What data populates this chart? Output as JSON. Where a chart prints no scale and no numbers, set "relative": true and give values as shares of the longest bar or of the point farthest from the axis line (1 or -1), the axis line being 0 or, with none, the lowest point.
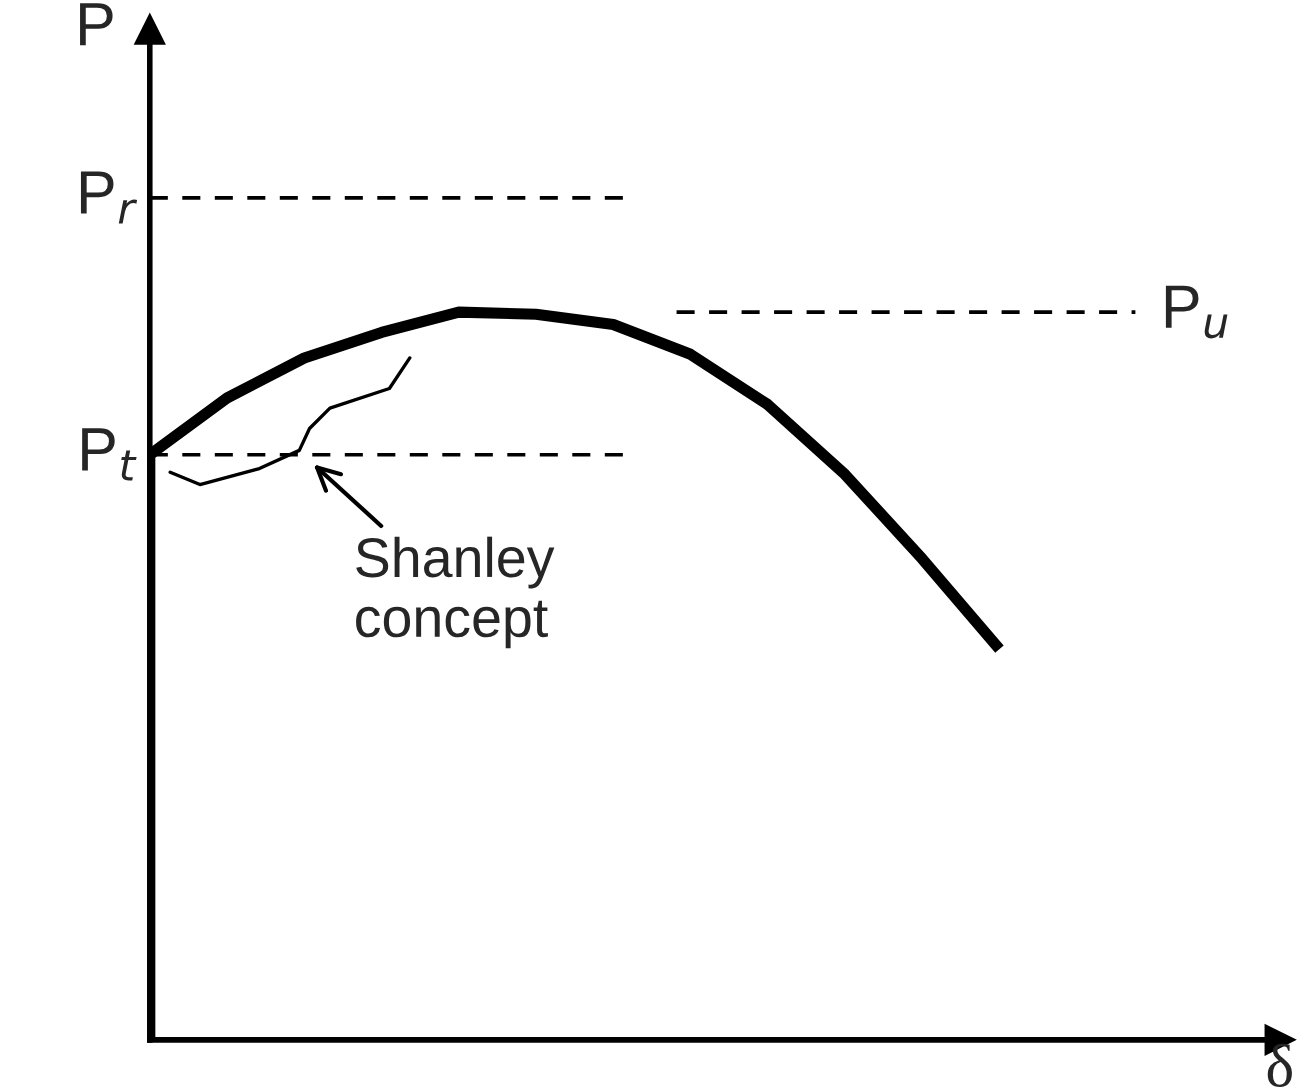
{
  "chart_data": {
    "type": "line",
    "relative": true,
    "ylabel": "P",
    "xlabel": "δ",
    "categories": [
      null,
      null,
      null,
      null,
      null,
      null,
      null,
      null,
      null,
      null,
      null,
      null
    ],
    "series": [
      {
        "color": "#000000",
        "values": [
          0.804,
          0.882,
          0.937,
          0.972,
          1,
          0.997,
          0.983,
          0.942,
          0.873,
          0.777,
          0.661,
          0.537
        ]
      }
    ],
    "ref_lines": [
      {
        "axis": "y",
        "value": 1.157,
        "label": "P$_{r}$",
        "line_style": "dashed",
        "color": "#000000"
      },
      {
        "axis": "y",
        "value": 1,
        "label": "P$_{u}$",
        "line_style": "dashed",
        "color": "#000000"
      },
      {
        "axis": "y",
        "value": 0.804,
        "label": "P$_{t}$",
        "line_style": "dashed",
        "color": "#000000"
      }
    ],
    "annotations": [
      "Shanley\nconcept"
    ]
  }
}
